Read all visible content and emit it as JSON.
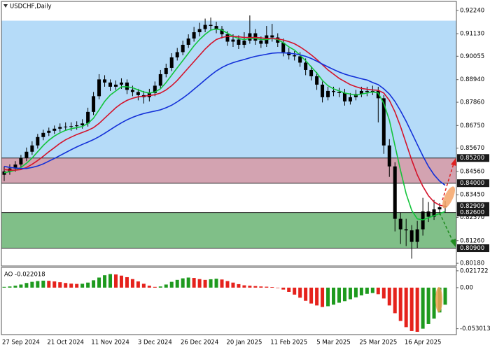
{
  "chart_data": [
    {
      "type": "candlestick",
      "title": "USDCHF,Daily",
      "categories": [
        null,
        null,
        null,
        "27 Sep 2024",
        null,
        null,
        null,
        null,
        null,
        null,
        null,
        "21 Oct 2024",
        null,
        null,
        null,
        null,
        null,
        null,
        null,
        "11 Nov 2024",
        null,
        null,
        null,
        null,
        null,
        null,
        null,
        "3 Dec 2024",
        null,
        null,
        null,
        null,
        null,
        null,
        null,
        "26 Dec 2024",
        null,
        null,
        null,
        null,
        null,
        null,
        null,
        "20 Jan 2025",
        null,
        null,
        null,
        null,
        null,
        null,
        null,
        "11 Feb 2025",
        null,
        null,
        null,
        null,
        null,
        null,
        null,
        "5 Mar 2025",
        null,
        null,
        null,
        null,
        null,
        null,
        null,
        "25 Mar 2025",
        null,
        null,
        null,
        null,
        null,
        null,
        null,
        "16 Apr 2025",
        null,
        null,
        null,
        null
      ],
      "open": [
        0.844,
        0.8456,
        0.847,
        0.8489,
        0.852,
        0.855,
        0.858,
        0.862,
        0.864,
        0.865,
        0.866,
        0.8668,
        0.867,
        0.8672,
        0.8676,
        0.8685,
        0.874,
        0.8815,
        0.8895,
        0.888,
        0.886,
        0.887,
        0.888,
        0.8845,
        0.8835,
        0.882,
        0.881,
        0.883,
        0.8865,
        0.892,
        0.895,
        0.9,
        0.9025,
        0.906,
        0.909,
        0.912,
        0.9135,
        0.9155,
        0.915,
        0.9135,
        0.911,
        0.9075,
        0.9085,
        0.906,
        0.908,
        0.9115,
        0.908,
        0.9065,
        0.9105,
        0.9095,
        0.907,
        0.9025,
        0.901,
        0.9005,
        0.8975,
        0.894,
        0.891,
        0.887,
        0.881,
        0.884,
        0.8835,
        0.883,
        0.879,
        0.881,
        0.8825,
        0.884,
        0.8835,
        0.884,
        0.8805,
        0.858,
        0.848,
        0.823,
        0.818,
        0.8175,
        0.812,
        0.818,
        0.8265,
        0.824,
        0.8275,
        0.8285
      ],
      "high": [
        0.848,
        0.849,
        0.8505,
        0.8535,
        0.857,
        0.86,
        0.8635,
        0.8655,
        0.8665,
        0.8675,
        0.8685,
        0.869,
        0.869,
        0.8695,
        0.8705,
        0.876,
        0.8835,
        0.892,
        0.8915,
        0.8895,
        0.889,
        0.89,
        0.8895,
        0.8865,
        0.885,
        0.884,
        0.885,
        0.8885,
        0.894,
        0.897,
        0.902,
        0.9045,
        0.908,
        0.911,
        0.9145,
        0.9165,
        0.9185,
        0.919,
        0.917,
        0.915,
        0.9125,
        0.911,
        0.9105,
        0.912,
        0.92,
        0.9135,
        0.91,
        0.915,
        0.916,
        0.9115,
        0.909,
        0.9045,
        0.903,
        0.9025,
        0.8995,
        0.896,
        0.893,
        0.8885,
        0.886,
        0.886,
        0.8855,
        0.885,
        0.883,
        0.8845,
        0.886,
        0.886,
        0.8865,
        0.886,
        0.882,
        0.861,
        0.85,
        0.826,
        0.823,
        0.82,
        0.822,
        0.833,
        0.831,
        0.832,
        0.8305,
        0.8315
      ],
      "low": [
        0.841,
        0.844,
        0.8455,
        0.8475,
        0.8505,
        0.8535,
        0.8565,
        0.8605,
        0.8625,
        0.8635,
        0.8645,
        0.865,
        0.865,
        0.8655,
        0.866,
        0.867,
        0.8725,
        0.88,
        0.886,
        0.884,
        0.8845,
        0.885,
        0.8825,
        0.8815,
        0.8795,
        0.878,
        0.879,
        0.8815,
        0.885,
        0.8905,
        0.8935,
        0.8985,
        0.901,
        0.9045,
        0.9075,
        0.91,
        0.912,
        0.913,
        0.9115,
        0.909,
        0.9055,
        0.905,
        0.904,
        0.9045,
        0.9065,
        0.906,
        0.9045,
        0.905,
        0.9075,
        0.905,
        0.9005,
        0.899,
        0.8985,
        0.8955,
        0.8915,
        0.889,
        0.8845,
        0.8785,
        0.8795,
        0.8815,
        0.881,
        0.877,
        0.8775,
        0.8795,
        0.881,
        0.8815,
        0.882,
        0.869,
        0.854,
        0.843,
        0.817,
        0.811,
        0.81,
        0.804,
        0.809,
        0.815,
        0.8215,
        0.8225,
        0.825,
        0.826
      ],
      "close": [
        0.8456,
        0.847,
        0.8489,
        0.852,
        0.855,
        0.858,
        0.862,
        0.864,
        0.865,
        0.866,
        0.8668,
        0.867,
        0.8672,
        0.8676,
        0.8685,
        0.874,
        0.8815,
        0.8895,
        0.888,
        0.886,
        0.887,
        0.888,
        0.8845,
        0.8835,
        0.882,
        0.881,
        0.883,
        0.8865,
        0.892,
        0.895,
        0.9,
        0.9025,
        0.906,
        0.909,
        0.912,
        0.9135,
        0.9155,
        0.915,
        0.9135,
        0.911,
        0.9075,
        0.9085,
        0.906,
        0.908,
        0.9115,
        0.908,
        0.9065,
        0.9105,
        0.9095,
        0.907,
        0.9025,
        0.901,
        0.9005,
        0.8975,
        0.894,
        0.891,
        0.887,
        0.881,
        0.884,
        0.8835,
        0.883,
        0.879,
        0.881,
        0.8825,
        0.884,
        0.8835,
        0.884,
        0.8805,
        0.858,
        0.848,
        0.823,
        0.818,
        0.8175,
        0.812,
        0.818,
        0.8265,
        0.824,
        0.8275,
        0.8285,
        0.82909
      ],
      "candle_color": "#000000",
      "lines": [
        {
          "color": "#12c43a",
          "values": [
            0.845,
            0.8455,
            0.8462,
            0.8475,
            0.8495,
            0.852,
            0.855,
            0.858,
            0.8605,
            0.8625,
            0.864,
            0.8652,
            0.866,
            0.8665,
            0.867,
            0.8685,
            0.871,
            0.875,
            0.879,
            0.882,
            0.884,
            0.886,
            0.886,
            0.8855,
            0.8845,
            0.8835,
            0.883,
            0.8835,
            0.885,
            0.888,
            0.8915,
            0.895,
            0.8985,
            0.902,
            0.9055,
            0.9085,
            0.911,
            0.913,
            0.9135,
            0.913,
            0.9115,
            0.91,
            0.909,
            0.9085,
            0.909,
            0.909,
            0.9085,
            0.9085,
            0.909,
            0.9085,
            0.907,
            0.905,
            0.9035,
            0.901,
            0.8985,
            0.8955,
            0.8925,
            0.889,
            0.8865,
            0.885,
            0.884,
            0.883,
            0.8825,
            0.882,
            0.8825,
            0.883,
            0.8835,
            0.883,
            0.878,
            0.87,
            0.858,
            0.846,
            0.835,
            0.827,
            0.823,
            0.8225,
            0.8235,
            0.8245,
            0.8255,
            0.8265
          ]
        },
        {
          "color": "#d4122a",
          "values": [
            0.8465,
            0.8462,
            0.8462,
            0.8465,
            0.8475,
            0.849,
            0.8508,
            0.8528,
            0.855,
            0.857,
            0.859,
            0.8607,
            0.862,
            0.8632,
            0.8642,
            0.8652,
            0.8665,
            0.8685,
            0.871,
            0.8735,
            0.876,
            0.878,
            0.8795,
            0.8805,
            0.8812,
            0.8815,
            0.8818,
            0.8822,
            0.883,
            0.8845,
            0.8865,
            0.889,
            0.892,
            0.895,
            0.898,
            0.901,
            0.904,
            0.9065,
            0.9085,
            0.9095,
            0.91,
            0.91,
            0.9098,
            0.9095,
            0.9095,
            0.9095,
            0.9093,
            0.909,
            0.909,
            0.9088,
            0.9083,
            0.9075,
            0.9065,
            0.905,
            0.9032,
            0.9012,
            0.899,
            0.8965,
            0.894,
            0.892,
            0.89,
            0.8885,
            0.887,
            0.886,
            0.8852,
            0.8848,
            0.8845,
            0.8843,
            0.883,
            0.8795,
            0.874,
            0.867,
            0.859,
            0.851,
            0.844,
            0.8385,
            0.834,
            0.831,
            0.8295,
            0.829
          ]
        },
        {
          "color": "#1330d8",
          "values": [
            0.848,
            0.8475,
            0.8472,
            0.847,
            0.847,
            0.8475,
            0.8482,
            0.8492,
            0.8505,
            0.8518,
            0.8532,
            0.8546,
            0.856,
            0.8573,
            0.8585,
            0.8596,
            0.8608,
            0.8622,
            0.8638,
            0.8655,
            0.8672,
            0.8688,
            0.8702,
            0.8714,
            0.8724,
            0.8732,
            0.8738,
            0.8744,
            0.875,
            0.876,
            0.8772,
            0.8788,
            0.8806,
            0.8826,
            0.8848,
            0.887,
            0.8893,
            0.8915,
            0.8935,
            0.8952,
            0.8965,
            0.8975,
            0.8983,
            0.899,
            0.8998,
            0.9005,
            0.901,
            0.9015,
            0.902,
            0.9022,
            0.9022,
            0.902,
            0.9017,
            0.9012,
            0.9005,
            0.8995,
            0.8982,
            0.8968,
            0.8955,
            0.8942,
            0.893,
            0.892,
            0.8912,
            0.8905,
            0.8898,
            0.8892,
            0.888,
            0.887,
            0.885,
            0.8825,
            0.879,
            0.8745,
            0.8695,
            0.864,
            0.8585,
            0.853,
            0.848,
            0.844,
            0.841,
            0.839
          ]
        }
      ],
      "ylim": [
        0.8005,
        0.9267
      ],
      "yticks": [
        {
          "value": 0.9224,
          "label": "0.92240"
        },
        {
          "value": 0.9113,
          "label": "0.91130"
        },
        {
          "value": 0.90055,
          "label": "0.90055"
        },
        {
          "value": 0.8894,
          "label": "0.88940"
        },
        {
          "value": 0.8786,
          "label": "0.87860"
        },
        {
          "value": 0.8675,
          "label": "0.86750"
        },
        {
          "value": 0.8567,
          "label": "0.85670"
        },
        {
          "value": 0.8456,
          "label": "0.84560"
        },
        {
          "value": 0.8345,
          "label": "0.83450"
        },
        {
          "value": 0.8237,
          "label": "0.82370"
        },
        {
          "value": 0.8126,
          "label": "0.81260"
        },
        {
          "value": 0.8018,
          "label": "0.80180"
        }
      ],
      "zones": [
        {
          "top": 0.9175,
          "bottom": 0.852,
          "color": "#b5dbf8"
        },
        {
          "top": 0.852,
          "bottom": 0.84,
          "color": "#d3a3b1"
        },
        {
          "top": 0.826,
          "bottom": 0.809,
          "color": "#80bf88"
        }
      ],
      "levels": [
        {
          "value": 0.852,
          "label": "0.85200"
        },
        {
          "value": 0.84,
          "label": "0.84000"
        },
        {
          "value": 0.826,
          "label": "0.82600"
        },
        {
          "value": 0.809,
          "label": "0.80900"
        }
      ],
      "last_price": {
        "value": 0.82909,
        "label": "0.82909"
      }
    },
    {
      "type": "bar",
      "title": "AO -0.022018",
      "values": [
        0.001,
        0.0015,
        0.0025,
        0.004,
        0.006,
        0.0075,
        0.0085,
        0.009,
        0.0088,
        0.008,
        0.007,
        0.006,
        0.0052,
        0.0048,
        0.005,
        0.0065,
        0.0095,
        0.013,
        0.016,
        0.0175,
        0.017,
        0.0155,
        0.0135,
        0.011,
        0.008,
        0.005,
        0.0025,
        0.001,
        0.0015,
        0.004,
        0.0075,
        0.01,
        0.012,
        0.013,
        0.0125,
        0.011,
        0.01,
        0.0108,
        0.0115,
        0.0105,
        0.0085,
        0.0065,
        0.0045,
        0.003,
        0.0025,
        0.002,
        0.0015,
        0.0012,
        0.0008,
        -0.0005,
        -0.0025,
        -0.0055,
        -0.009,
        -0.013,
        -0.017,
        -0.0205,
        -0.023,
        -0.025,
        -0.024,
        -0.022,
        -0.0195,
        -0.0175,
        -0.015,
        -0.0125,
        -0.01,
        -0.008,
        -0.007,
        -0.0085,
        -0.014,
        -0.023,
        -0.033,
        -0.043,
        -0.051,
        -0.056,
        -0.057,
        -0.053,
        -0.047,
        -0.04,
        -0.032,
        -0.022018
      ],
      "up_color": "#1e9a1e",
      "down_color": "#e5221c",
      "ylim": [
        -0.0606,
        0.0252
      ],
      "yticks": [
        0.021722,
        {
          "value": 0,
          "label": "0.00"
        },
        -0.053013
      ]
    }
  ]
}
